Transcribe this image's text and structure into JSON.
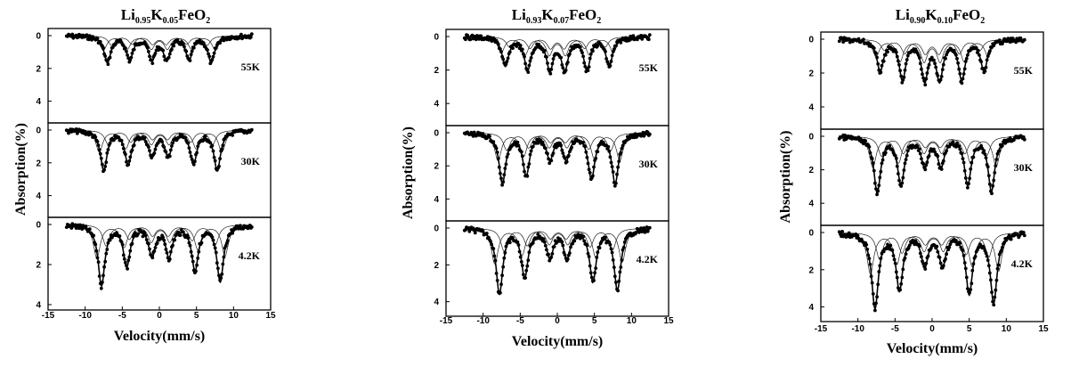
{
  "chart_data": [
    {
      "type": "scatter",
      "title": "Li0.95K0.05FeO2",
      "title_parts": {
        "a": "Li",
        "a_sub": "0.95",
        "b": "K",
        "b_sub": "0.05",
        "c": "FeO",
        "c_sub": "2"
      },
      "xlabel": "Velocity(mm/s)",
      "ylabel": "Absorption(%)",
      "xlim": [
        -15,
        15
      ],
      "x_ticks": [
        "-15",
        "-10",
        "-5",
        "0",
        "5",
        "10",
        "15"
      ],
      "panels": [
        {
          "label": "55K",
          "ylim": [
            0,
            5
          ],
          "y_ticks": [
            "0",
            "2",
            "4"
          ],
          "peaks": [
            -7.0,
            -4.0,
            -1.0,
            1.0,
            4.0,
            7.0
          ],
          "depths": [
            1.6,
            1.4,
            1.4,
            1.4,
            1.4,
            1.6
          ]
        },
        {
          "label": "30K",
          "ylim": [
            0,
            5
          ],
          "y_ticks": [
            "0",
            "2",
            "4"
          ],
          "peaks": [
            -7.5,
            -4.2,
            -1.0,
            1.2,
            4.6,
            7.8
          ],
          "depths": [
            2.4,
            2.0,
            1.5,
            1.5,
            2.0,
            2.4
          ]
        },
        {
          "label": "4.2K",
          "ylim": [
            0,
            4
          ],
          "y_ticks": [
            "0",
            "2",
            "4"
          ],
          "peaks": [
            -7.8,
            -4.4,
            -1.0,
            1.3,
            4.8,
            8.2
          ],
          "depths": [
            3.0,
            2.0,
            1.5,
            1.5,
            2.2,
            2.8
          ]
        }
      ]
    },
    {
      "type": "scatter",
      "title": "Li0.93K0.07FeO2",
      "title_parts": {
        "a": "Li",
        "a_sub": "0.93",
        "b": "K",
        "b_sub": "0.07",
        "c": "FeO",
        "c_sub": "2"
      },
      "xlabel": "Velocity(mm/s)",
      "ylabel": "Absorption(%)",
      "xlim": [
        -15,
        15
      ],
      "x_ticks": [
        "-15",
        "-10",
        "-5",
        "0",
        "5",
        "10",
        "15"
      ],
      "panels": [
        {
          "label": "55K",
          "ylim": [
            0,
            5
          ],
          "y_ticks": [
            "0",
            "2",
            "4"
          ],
          "peaks": [
            -7.0,
            -4.0,
            -1.0,
            1.0,
            4.0,
            7.0
          ],
          "depths": [
            1.7,
            1.9,
            1.9,
            1.9,
            1.9,
            1.7
          ]
        },
        {
          "label": "30K",
          "ylim": [
            0,
            5
          ],
          "y_ticks": [
            "0",
            "2",
            "4"
          ],
          "peaks": [
            -7.4,
            -4.2,
            -1.0,
            1.2,
            4.6,
            7.8
          ],
          "depths": [
            3.0,
            2.5,
            1.5,
            1.5,
            2.7,
            3.0
          ]
        },
        {
          "label": "4.2K",
          "ylim": [
            0,
            4.5
          ],
          "y_ticks": [
            "0",
            "2",
            "4"
          ],
          "peaks": [
            -7.8,
            -4.4,
            -1.0,
            1.3,
            4.8,
            8.1
          ],
          "depths": [
            3.5,
            2.6,
            1.5,
            1.5,
            2.8,
            3.3
          ]
        }
      ]
    },
    {
      "type": "scatter",
      "title": "Li0.90K0.10FeO2",
      "title_parts": {
        "a": "Li",
        "a_sub": "0.90",
        "b": "K",
        "b_sub": "0.10",
        "c": "FeO",
        "c_sub": "2"
      },
      "xlabel": "Velocity(mm/s)",
      "ylabel": "Absorption(%)",
      "xlim": [
        -15,
        15
      ],
      "x_ticks": [
        "-15",
        "-10",
        "-5",
        "0",
        "5",
        "10",
        "15"
      ],
      "panels": [
        {
          "label": "55K",
          "ylim": [
            0,
            5
          ],
          "y_ticks": [
            "0",
            "2",
            "4"
          ],
          "peaks": [
            -7.0,
            -4.0,
            -1.0,
            1.0,
            4.0,
            7.0
          ],
          "depths": [
            1.8,
            2.3,
            2.3,
            2.3,
            2.3,
            1.8
          ]
        },
        {
          "label": "30K",
          "ylim": [
            0,
            5
          ],
          "y_ticks": [
            "0",
            "2",
            "4"
          ],
          "peaks": [
            -7.4,
            -4.2,
            -1.0,
            1.2,
            4.8,
            8.0
          ],
          "depths": [
            3.3,
            2.8,
            1.7,
            1.7,
            2.8,
            3.2
          ]
        },
        {
          "label": "4.2K",
          "ylim": [
            0,
            4.5
          ],
          "y_ticks": [
            "0",
            "2",
            "4"
          ],
          "peaks": [
            -7.7,
            -4.4,
            -1.0,
            1.4,
            5.0,
            8.3
          ],
          "depths": [
            4.0,
            3.0,
            1.7,
            1.7,
            3.2,
            3.7
          ]
        }
      ]
    }
  ]
}
